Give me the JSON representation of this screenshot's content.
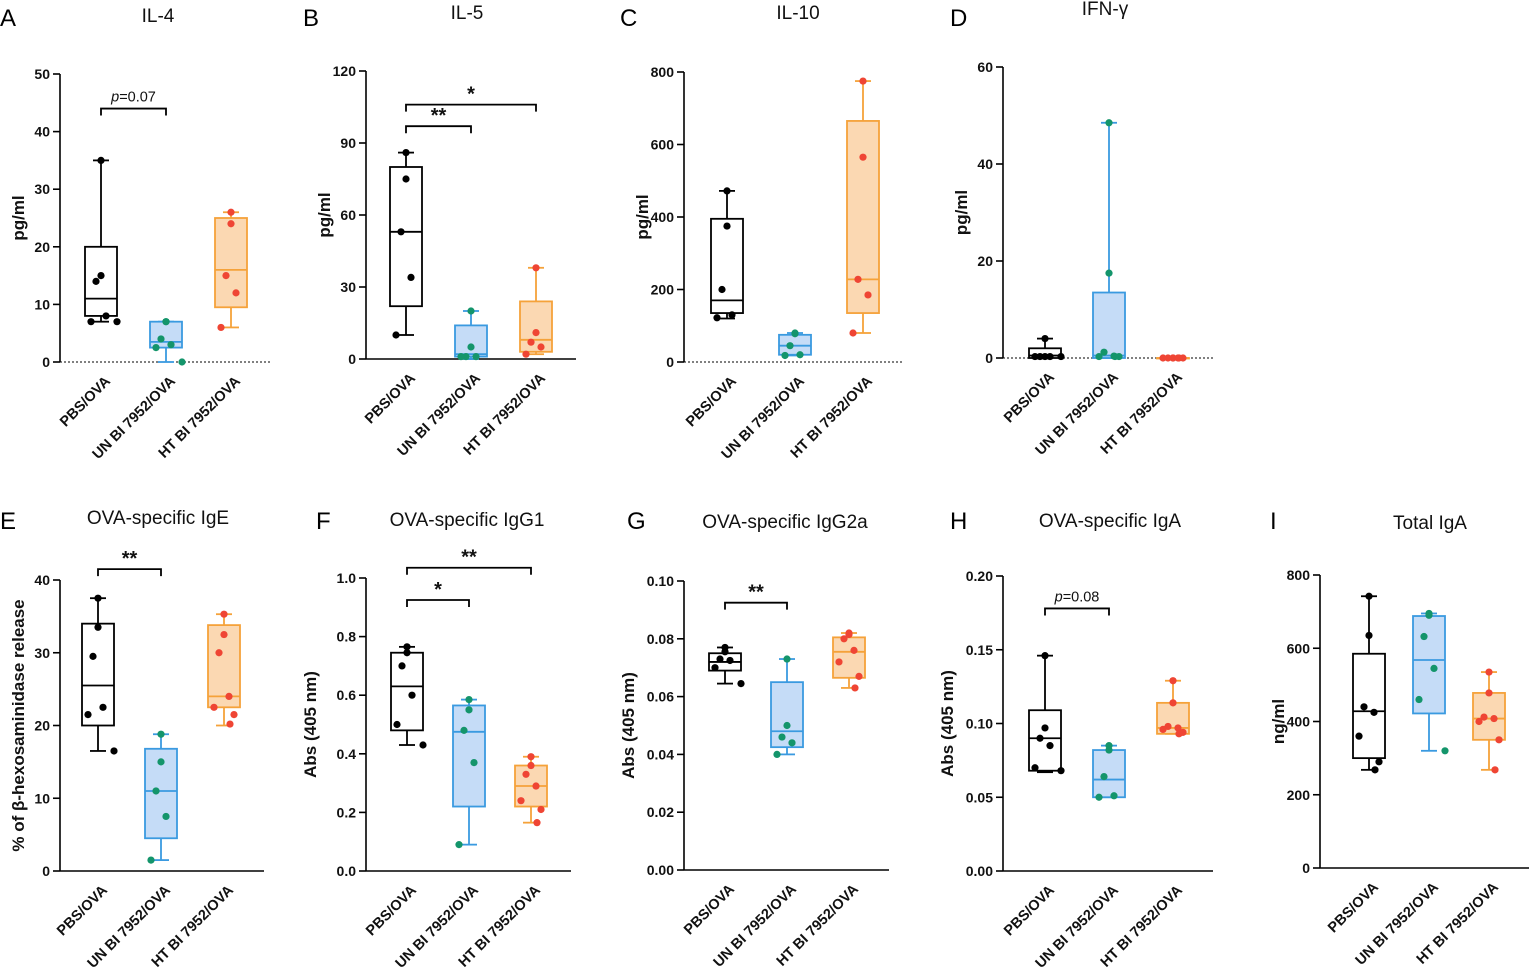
{
  "figure": {
    "colors": {
      "PBS/OVA": "#000000",
      "UN BI 7952/OVA": "#3a9ae0",
      "HT BI 7952/OVA": "#f5a23a"
    },
    "fills": {
      "PBS/OVA": "none",
      "UN BI 7952/OVA": "#c5dcf7",
      "HT BI 7952/OVA": "#fbd8b2"
    },
    "point_colors": {
      "PBS/OVA": "#000000",
      "UN BI 7952/OVA": "#14956b",
      "HT BI 7952/OVA": "#ef4534"
    }
  },
  "chart_data": [
    {
      "panel": "A",
      "title": "IL-4",
      "type": "box",
      "ylabel": "pg/ml",
      "ylim": [
        0,
        50
      ],
      "yticks": [
        0,
        10,
        20,
        30,
        40,
        50
      ],
      "categories": [
        "PBS/OVA",
        "UN BI 7952/OVA",
        "HT BI 7952/OVA"
      ],
      "boxes": [
        {
          "min": 7,
          "q1": 8,
          "median": 11,
          "q3": 20,
          "max": 35,
          "points": [
            35,
            15,
            14,
            8,
            7,
            7
          ]
        },
        {
          "min": 0,
          "q1": 2.5,
          "median": 3.5,
          "q3": 7,
          "max": 7,
          "points": [
            7,
            7,
            4,
            3,
            2.5,
            0
          ]
        },
        {
          "min": 6,
          "q1": 9.5,
          "median": 16,
          "q3": 25,
          "max": 26,
          "points": [
            26,
            24,
            15,
            12,
            6
          ]
        }
      ],
      "dashed_zero": true,
      "annotations": [
        {
          "from": 0,
          "to": 1,
          "y": 44,
          "label": "p=0.07",
          "italic_p": true
        }
      ]
    },
    {
      "panel": "B",
      "title": "IL-5",
      "type": "box",
      "ylabel": "pg/ml",
      "ylim": [
        0,
        120
      ],
      "yticks": [
        0,
        30,
        60,
        90,
        120
      ],
      "categories": [
        "PBS/OVA",
        "UN BI 7952/OVA",
        "HT BI 7952/OVA"
      ],
      "boxes": [
        {
          "min": 10,
          "q1": 22,
          "median": 53,
          "q3": 80,
          "max": 86,
          "points": [
            86,
            75,
            53,
            34,
            10
          ]
        },
        {
          "min": 0,
          "q1": 1,
          "median": 2,
          "q3": 14,
          "max": 20,
          "points": [
            20,
            5,
            1,
            1,
            1
          ]
        },
        {
          "min": 2,
          "q1": 3,
          "median": 8,
          "q3": 24,
          "max": 38,
          "points": [
            38,
            11,
            7,
            5,
            2
          ]
        }
      ],
      "dashed_zero": false,
      "annotations": [
        {
          "from": 0,
          "to": 1,
          "y": 97,
          "label": "**"
        },
        {
          "from": 0,
          "to": 2,
          "y": 106,
          "label": "*"
        }
      ]
    },
    {
      "panel": "C",
      "title": "IL-10",
      "type": "box",
      "ylabel": "pg/ml",
      "ylim": [
        0,
        800
      ],
      "yticks": [
        0,
        200,
        400,
        600,
        800
      ],
      "categories": [
        "PBS/OVA",
        "UN BI 7952/OVA",
        "HT BI 7952/OVA"
      ],
      "boxes": [
        {
          "min": 120,
          "q1": 135,
          "median": 170,
          "q3": 395,
          "max": 472,
          "points": [
            472,
            375,
            200,
            130,
            122
          ]
        },
        {
          "min": 18,
          "q1": 20,
          "median": 45,
          "q3": 75,
          "max": 80,
          "points": [
            80,
            78,
            45,
            20,
            18
          ]
        },
        {
          "min": 80,
          "q1": 135,
          "median": 228,
          "q3": 665,
          "max": 775,
          "points": [
            775,
            565,
            228,
            185,
            80
          ]
        }
      ],
      "dashed_zero": true,
      "annotations": []
    },
    {
      "panel": "D",
      "title": "IFN-γ",
      "type": "box",
      "ylabel": "pg/ml",
      "ylim": [
        0,
        60
      ],
      "yticks": [
        0,
        20,
        40,
        60
      ],
      "categories": [
        "PBS/OVA",
        "UN BI 7952/OVA",
        "HT BI 7952/OVA"
      ],
      "boxes": [
        {
          "min": 0,
          "q1": 0,
          "median": 0.5,
          "q3": 2,
          "max": 4,
          "points": [
            4,
            0.3,
            0.3,
            0.3,
            0.3,
            0.3
          ]
        },
        {
          "min": 0,
          "q1": 0,
          "median": 0.5,
          "q3": 13.5,
          "max": 48.5,
          "points": [
            48.5,
            17.5,
            1.2,
            0.4,
            0.3,
            0.3,
            0.3
          ]
        },
        {
          "min": 0,
          "q1": 0,
          "median": 0,
          "q3": 0,
          "max": 0,
          "points": [
            0,
            0,
            0,
            0,
            0,
            0,
            0
          ]
        }
      ],
      "dashed_zero": true,
      "annotations": []
    },
    {
      "panel": "E",
      "title": "OVA-specific IgE",
      "type": "box",
      "ylabel": "% of β-hexosaminidase release",
      "ylim": [
        0,
        40
      ],
      "yticks": [
        0,
        10,
        20,
        30,
        40
      ],
      "categories": [
        "PBS/OVA",
        "UN BI 7952/OVA",
        "HT BI 7952/OVA"
      ],
      "boxes": [
        {
          "min": 16.5,
          "q1": 20,
          "median": 25.5,
          "q3": 34,
          "max": 37.5,
          "points": [
            37.5,
            33.5,
            29.5,
            22.5,
            21.5,
            16.5
          ]
        },
        {
          "min": 1.5,
          "q1": 4.5,
          "median": 11,
          "q3": 16.8,
          "max": 18.8,
          "points": [
            18.8,
            15,
            11,
            7.5,
            1.5
          ]
        },
        {
          "min": 20,
          "q1": 22.5,
          "median": 24,
          "q3": 33.8,
          "max": 35.3,
          "points": [
            35.3,
            32.5,
            30,
            24,
            22.5,
            21.5,
            20.2
          ]
        }
      ],
      "dashed_zero": false,
      "annotations": [
        {
          "from": 0,
          "to": 1,
          "y": 41.5,
          "label": "**"
        }
      ]
    },
    {
      "panel": "F",
      "title": "OVA-specific IgG1",
      "type": "box",
      "ylabel": "Abs (405 nm)",
      "ylim": [
        0,
        1.0
      ],
      "yticks": [
        0.0,
        0.2,
        0.4,
        0.6,
        0.8,
        1.0
      ],
      "decimals": 1,
      "categories": [
        "PBS/OVA",
        "UN BI 7952/OVA",
        "HT BI 7952/OVA"
      ],
      "boxes": [
        {
          "min": 0.43,
          "q1": 0.48,
          "median": 0.63,
          "q3": 0.745,
          "max": 0.765,
          "points": [
            0.765,
            0.745,
            0.7,
            0.6,
            0.5,
            0.43
          ]
        },
        {
          "min": 0.09,
          "q1": 0.22,
          "median": 0.475,
          "q3": 0.565,
          "max": 0.585,
          "points": [
            0.585,
            0.55,
            0.48,
            0.37,
            0.09
          ]
        },
        {
          "min": 0.165,
          "q1": 0.22,
          "median": 0.29,
          "q3": 0.36,
          "max": 0.39,
          "points": [
            0.39,
            0.36,
            0.33,
            0.29,
            0.24,
            0.21,
            0.165
          ]
        }
      ],
      "dashed_zero": false,
      "annotations": [
        {
          "from": 0,
          "to": 1,
          "y": 0.925,
          "label": "*"
        },
        {
          "from": 0,
          "to": 2,
          "y": 1.035,
          "label": "**"
        }
      ]
    },
    {
      "panel": "G",
      "title": "OVA-specific IgG2a",
      "type": "box",
      "ylabel": "Abs (405 nm)",
      "ylim": [
        0,
        0.1
      ],
      "yticks": [
        0.0,
        0.02,
        0.04,
        0.06,
        0.08,
        0.1
      ],
      "decimals": 2,
      "categories": [
        "PBS/OVA",
        "UN BI 7952/OVA",
        "HT BI 7952/OVA"
      ],
      "boxes": [
        {
          "min": 0.0645,
          "q1": 0.069,
          "median": 0.072,
          "q3": 0.075,
          "max": 0.077,
          "points": [
            0.077,
            0.0755,
            0.073,
            0.0725,
            0.07,
            0.0645
          ]
        },
        {
          "min": 0.04,
          "q1": 0.0425,
          "median": 0.048,
          "q3": 0.065,
          "max": 0.073,
          "points": [
            0.073,
            0.05,
            0.046,
            0.044,
            0.04
          ]
        },
        {
          "min": 0.063,
          "q1": 0.0665,
          "median": 0.0755,
          "q3": 0.0805,
          "max": 0.082,
          "points": [
            0.082,
            0.0815,
            0.08,
            0.076,
            0.072,
            0.067,
            0.063
          ]
        }
      ],
      "dashed_zero": false,
      "annotations": [
        {
          "from": 0,
          "to": 1,
          "y": 0.0925,
          "label": "**"
        }
      ]
    },
    {
      "panel": "H",
      "title": "OVA-specific IgA",
      "type": "box",
      "ylabel": "Abs (405 nm)",
      "ylim": [
        0,
        0.2
      ],
      "yticks": [
        0.0,
        0.05,
        0.1,
        0.15,
        0.2
      ],
      "decimals": 2,
      "categories": [
        "PBS/OVA",
        "UN BI 7952/OVA",
        "HT BI 7952/OVA"
      ],
      "boxes": [
        {
          "min": 0.067,
          "q1": 0.068,
          "median": 0.09,
          "q3": 0.109,
          "max": 0.146,
          "points": [
            0.146,
            0.097,
            0.09,
            0.085,
            0.07,
            0.068
          ]
        },
        {
          "min": 0.05,
          "q1": 0.05,
          "median": 0.062,
          "q3": 0.082,
          "max": 0.085,
          "points": [
            0.085,
            0.082,
            0.064,
            0.051,
            0.05
          ]
        },
        {
          "min": 0.093,
          "q1": 0.093,
          "median": 0.097,
          "q3": 0.114,
          "max": 0.129,
          "points": [
            0.129,
            0.114,
            0.098,
            0.097,
            0.096,
            0.094,
            0.093
          ]
        }
      ],
      "dashed_zero": false,
      "annotations": [
        {
          "from": 0,
          "to": 1,
          "y": 0.178,
          "label": "p=0.08",
          "italic_p": true
        }
      ]
    },
    {
      "panel": "I",
      "title": "Total IgA",
      "type": "box",
      "ylabel": "ng/ml",
      "ylim": [
        0,
        800
      ],
      "yticks": [
        0,
        200,
        400,
        600,
        800
      ],
      "categories": [
        "PBS/OVA",
        "UN BI 7952/OVA",
        "HT BI 7952/OVA"
      ],
      "boxes": [
        {
          "min": 268,
          "q1": 300,
          "median": 428,
          "q3": 585,
          "max": 742,
          "points": [
            742,
            635,
            440,
            425,
            360,
            290,
            268
          ]
        },
        {
          "min": 320,
          "q1": 422,
          "median": 568,
          "q3": 688,
          "max": 695,
          "points": [
            695,
            690,
            632,
            545,
            460,
            320
          ]
        },
        {
          "min": 268,
          "q1": 350,
          "median": 408,
          "q3": 478,
          "max": 535,
          "points": [
            535,
            478,
            412,
            408,
            400,
            350,
            268
          ]
        }
      ],
      "dashed_zero": false,
      "annotations": []
    }
  ]
}
